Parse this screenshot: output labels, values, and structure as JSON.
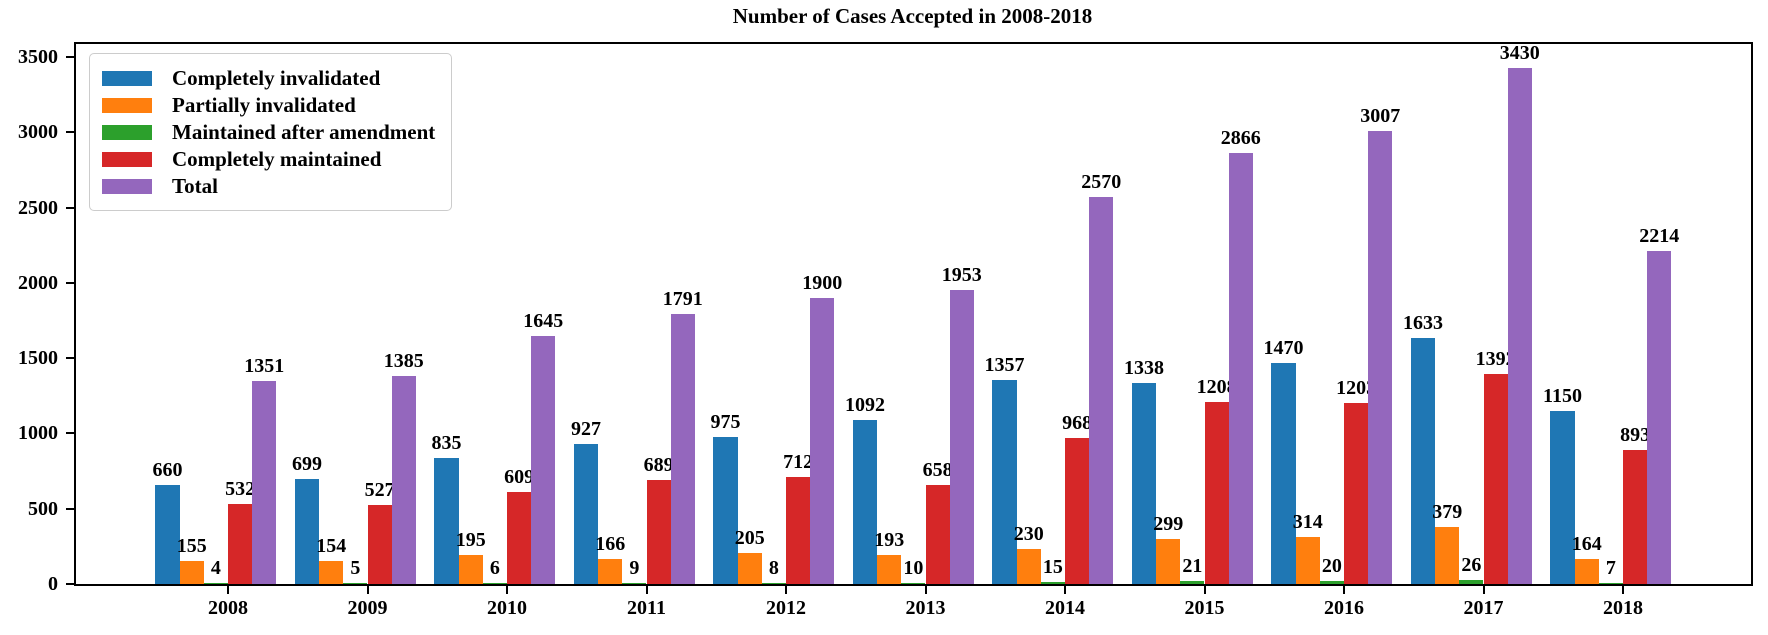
{
  "chart_data": {
    "type": "bar",
    "title": "Number of Cases Accepted in 2008-2018",
    "xlabel": "",
    "ylabel": "",
    "categories": [
      "2008",
      "2009",
      "2010",
      "2011",
      "2012",
      "2013",
      "2014",
      "2015",
      "2016",
      "2017",
      "2018"
    ],
    "series": [
      {
        "name": "Completely invalidated",
        "color": "#1f77b4",
        "values": [
          660,
          699,
          835,
          927,
          975,
          1092,
          1357,
          1338,
          1470,
          1633,
          1150
        ]
      },
      {
        "name": "Partially invalidated",
        "color": "#ff7f0e",
        "values": [
          155,
          154,
          195,
          166,
          205,
          193,
          230,
          299,
          314,
          379,
          164
        ]
      },
      {
        "name": "Maintained after amendment",
        "color": "#2ca02c",
        "values": [
          4,
          5,
          6,
          9,
          8,
          10,
          15,
          21,
          20,
          26,
          7
        ]
      },
      {
        "name": "Completely maintained",
        "color": "#d62728",
        "values": [
          532,
          527,
          609,
          689,
          712,
          658,
          968,
          1208,
          1203,
          1392,
          893
        ]
      },
      {
        "name": "Total",
        "color": "#9467bd",
        "values": [
          1351,
          1385,
          1645,
          1791,
          1900,
          1953,
          2570,
          2866,
          3007,
          3430,
          2214
        ]
      }
    ],
    "ylim": [
      0,
      3600
    ],
    "yticks": [
      0,
      500,
      1000,
      1500,
      2000,
      2500,
      3000,
      3500
    ],
    "grid": false,
    "legend_position": "upper-left",
    "bar_value_labels": true,
    "text_color": "#000000",
    "spine_color": "#000000"
  }
}
